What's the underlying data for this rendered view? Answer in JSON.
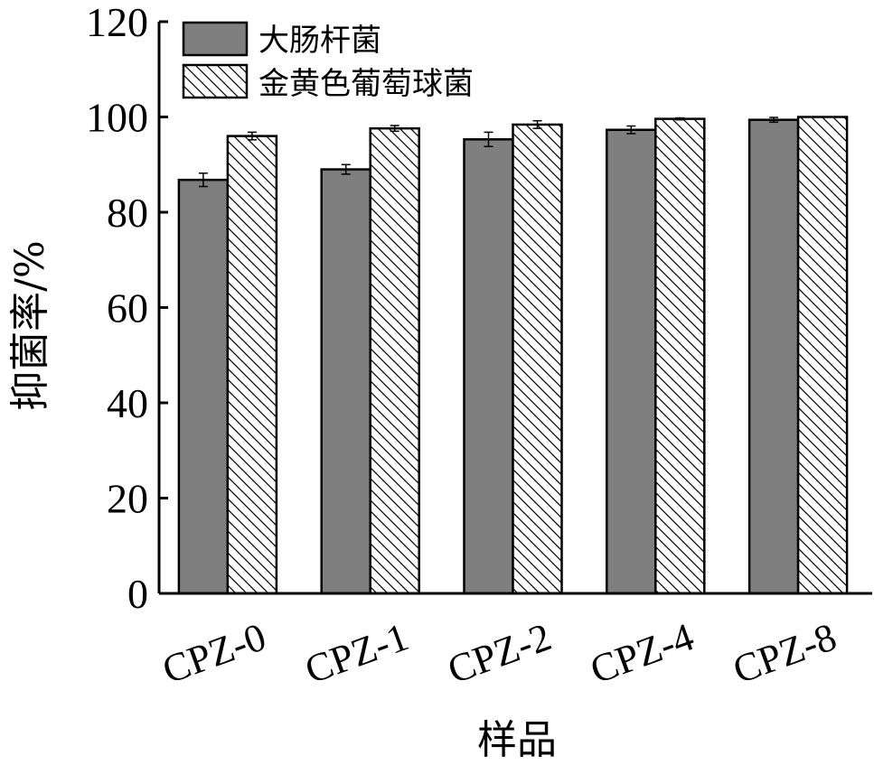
{
  "chart_data": {
    "type": "bar",
    "categories": [
      "CPZ-0",
      "CPZ-1",
      "CPZ-2",
      "CPZ-4",
      "CPZ-8"
    ],
    "series": [
      {
        "name": "大肠杆菌",
        "values": [
          86.8,
          89.0,
          95.3,
          97.3,
          99.4
        ],
        "errors": [
          1.4,
          1.0,
          1.5,
          0.8,
          0.5
        ],
        "fill": "#7f7f7f",
        "pattern": "solid"
      },
      {
        "name": "金黄色葡萄球菌",
        "values": [
          96.0,
          97.6,
          98.4,
          99.6,
          100.0
        ],
        "errors": [
          0.8,
          0.6,
          0.8,
          0.2,
          0.0
        ],
        "fill": "#ffffff",
        "pattern": "diagonal-hatch"
      }
    ],
    "ylabel": "抑菌率/%",
    "xlabel": "样品",
    "ylim": [
      0,
      120
    ],
    "yticks": [
      0,
      20,
      40,
      60,
      80,
      100,
      120
    ],
    "grid": false,
    "legend_position": "top-left",
    "error_bars": true
  }
}
